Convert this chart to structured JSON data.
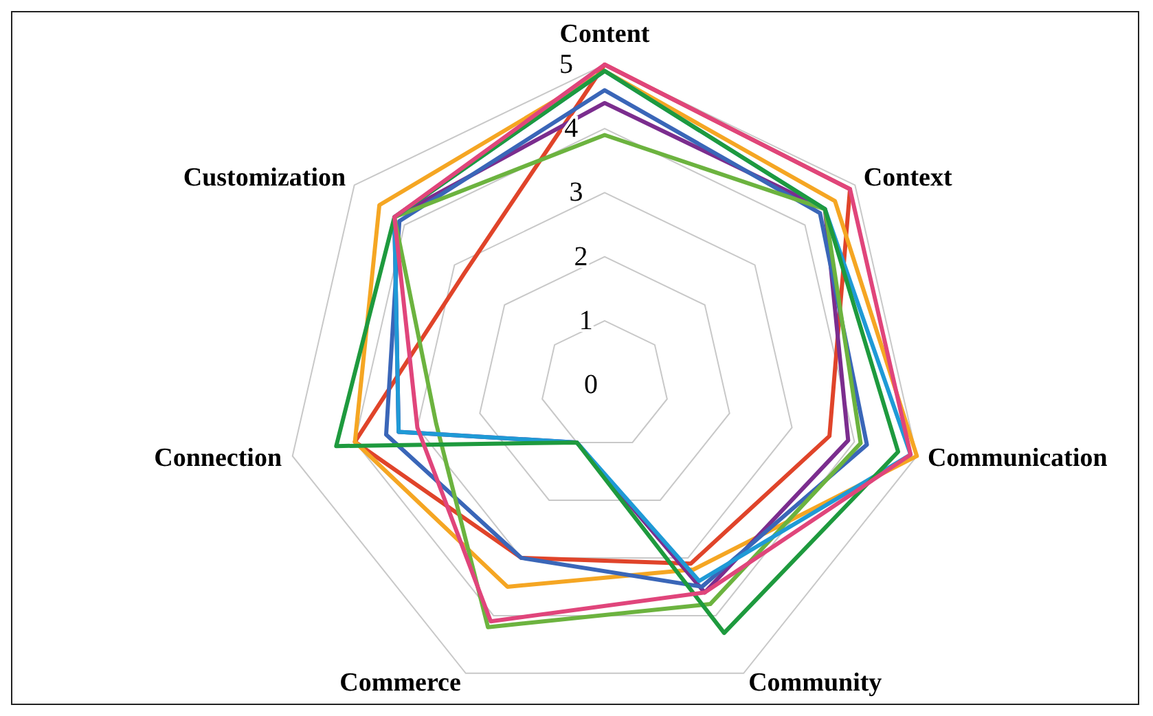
{
  "chart_data": {
    "type": "radar",
    "categories": [
      "Content",
      "Context",
      "Communication",
      "Community",
      "Commerce",
      "Connection",
      "Customization"
    ],
    "series": [
      {
        "color": "#e0442a",
        "values": [
          5,
          4.9,
          3.6,
          3.1,
          3.0,
          4.0,
          2.8
        ]
      },
      {
        "color": "#f5a623",
        "values": [
          4.9,
          4.6,
          5,
          3.2,
          3.5,
          4.0,
          4.5
        ]
      },
      {
        "color": "#7b2d8e",
        "values": [
          4.4,
          4.4,
          3.9,
          3.6,
          1,
          3.3,
          4.2
        ]
      },
      {
        "color": "#3a66b8",
        "values": [
          4.6,
          4.3,
          4.2,
          3.5,
          3.0,
          3.5,
          4.1
        ]
      },
      {
        "color": "#6cb33f",
        "values": [
          3.9,
          4.4,
          4.1,
          3.8,
          4.2,
          2.7,
          4.2
        ]
      },
      {
        "color": "#1f9ad6",
        "values": [
          4.9,
          4.4,
          4.9,
          3.4,
          1,
          3.3,
          4.2
        ]
      },
      {
        "color": "#1e9a3e",
        "values": [
          4.9,
          4.4,
          4.7,
          4.3,
          1,
          4.3,
          4.2
        ]
      },
      {
        "color": "#e0457b",
        "values": [
          5,
          4.9,
          4.9,
          3.6,
          4.1,
          3.0,
          4.2
        ]
      }
    ],
    "ylim": [
      0,
      5
    ],
    "yticks": [
      0,
      1,
      2,
      3,
      4,
      5
    ],
    "grid": true,
    "marker": "none"
  }
}
